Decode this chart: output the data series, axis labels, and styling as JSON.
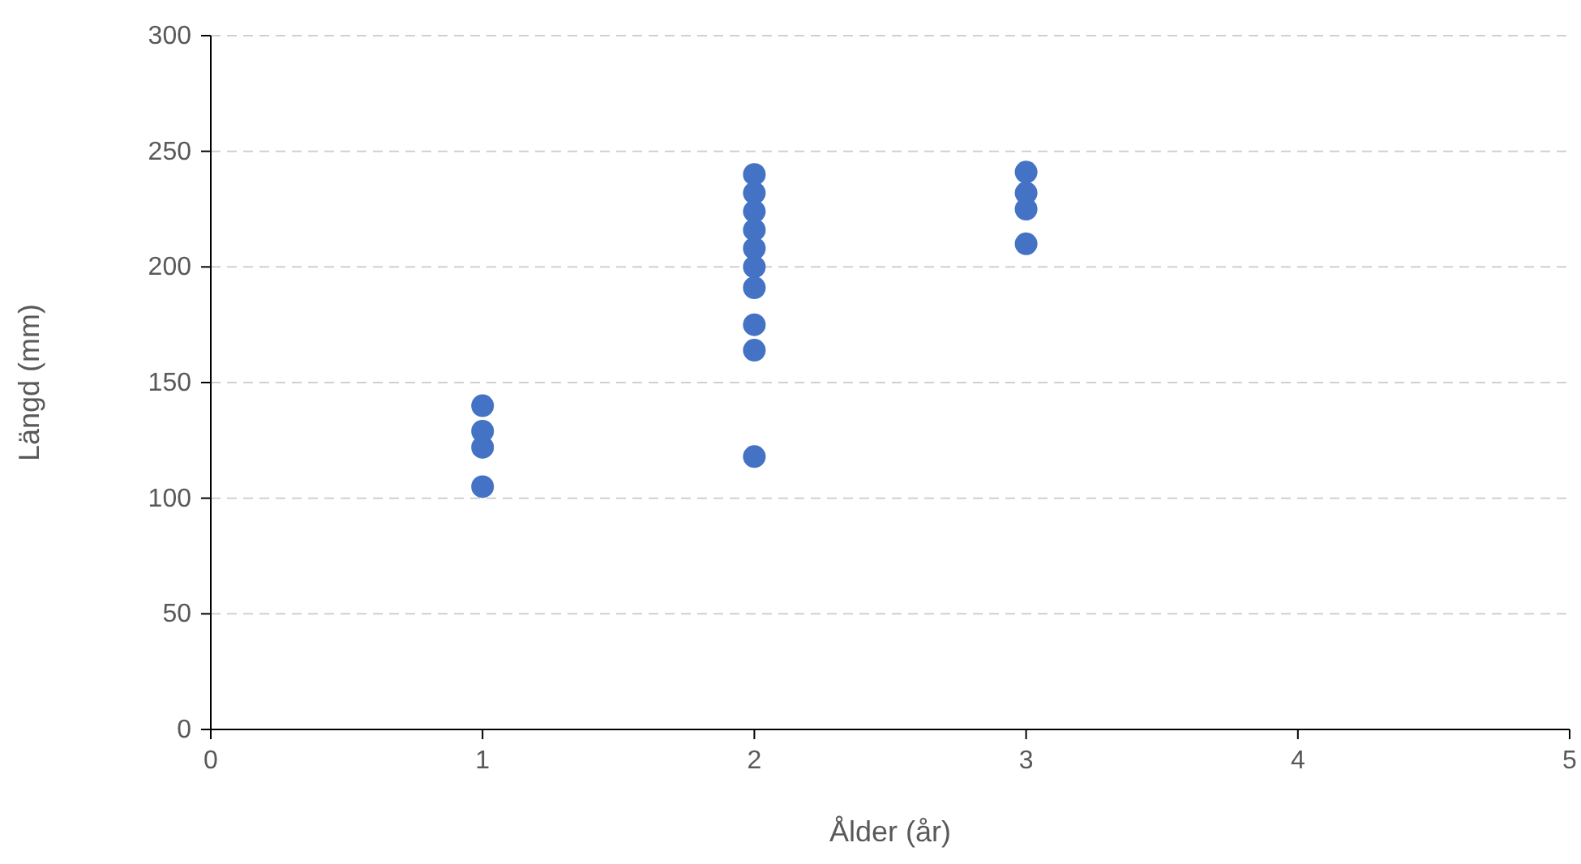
{
  "chart_data": {
    "type": "scatter",
    "xlabel": "Ålder (år)",
    "ylabel": "Längd (mm)",
    "xlim": [
      0,
      5
    ],
    "xticks": [
      0,
      1,
      2,
      3,
      4,
      5
    ],
    "ylim": [
      0,
      300
    ],
    "yticks": [
      0,
      50,
      100,
      150,
      200,
      250,
      300
    ],
    "grid": "y",
    "marker": "circle",
    "series": [
      {
        "color": "#4472c4",
        "x": [
          1,
          1,
          1,
          1,
          2,
          2,
          2,
          2,
          2,
          2,
          2,
          2,
          2,
          2,
          3,
          3,
          3,
          3
        ],
        "values": [
          140,
          129,
          122,
          105,
          240,
          232,
          224,
          216,
          208,
          200,
          191,
          175,
          164,
          118,
          241,
          232,
          225,
          210
        ]
      }
    ]
  }
}
